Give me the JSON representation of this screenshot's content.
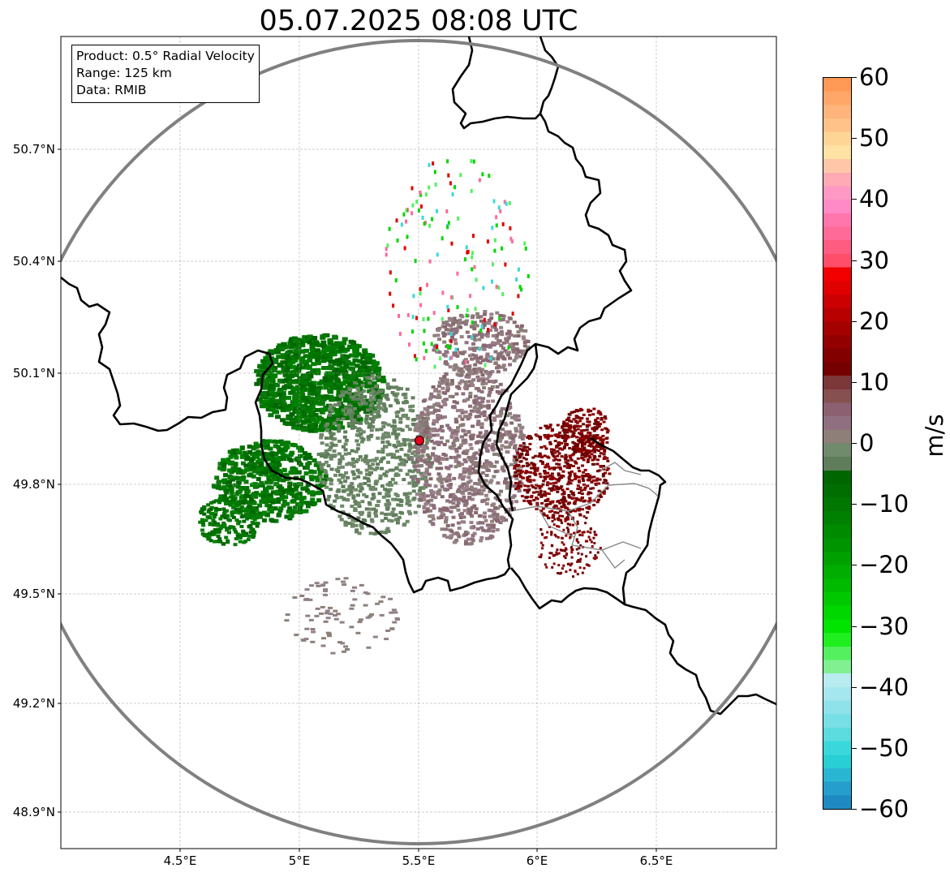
{
  "title": "05.07.2025 08:08 UTC",
  "info_box": {
    "product": "Product: 0.5° Radial Velocity",
    "range": "Range: 125 km",
    "data": "Data: RMIB"
  },
  "map": {
    "lat_ticks": [
      "50.7°N",
      "50.4°N",
      "50.1°N",
      "49.8°N",
      "49.5°N",
      "49.2°N",
      "48.9°N"
    ],
    "lon_ticks": [
      "4.5°E",
      "5°E",
      "5.5°E",
      "6°E",
      "6.5°E"
    ],
    "radar_site_marker": "radar-site",
    "range_ring_color": "#808080",
    "border_color": "#000000",
    "subregion_border_color": "#888888"
  },
  "colorbar": {
    "unit": "m/s",
    "min": -60,
    "max": 60,
    "tick_values": [
      60,
      50,
      40,
      30,
      20,
      10,
      0,
      -10,
      -20,
      -30,
      -40,
      -50,
      -60
    ],
    "tick_labels": [
      "60",
      "50",
      "40",
      "30",
      "20",
      "10",
      "0",
      "−10",
      "−20",
      "−30",
      "−40",
      "−50",
      "−60"
    ],
    "colors_top_to_bottom": [
      "#ff9955",
      "#ffa768",
      "#ffb47c",
      "#ffc289",
      "#ffd596",
      "#ffe2a4",
      "#ffc7a8",
      "#ffaab5",
      "#ff98c4",
      "#ff8ac6",
      "#ff76ad",
      "#ff6a98",
      "#ff5c82",
      "#ff4e6a",
      "#f20000",
      "#e10000",
      "#cc0000",
      "#b80000",
      "#a40000",
      "#930000",
      "#830000",
      "#740000",
      "#7c3838",
      "#865050",
      "#8c6070",
      "#907080",
      "#8c8078",
      "#708a6c",
      "#5f7d5a",
      "#006600",
      "#006e00",
      "#007700",
      "#008000",
      "#008a00",
      "#009400",
      "#00a000",
      "#00ad00",
      "#00ba00",
      "#00c800",
      "#00d600",
      "#00e400",
      "#1fef1f",
      "#55f05f",
      "#80f090",
      "#b8ecf0",
      "#a5e7ee",
      "#90e2ea",
      "#78dfe6",
      "#5cdcdf",
      "#3ad8dc",
      "#28d0d6",
      "#29b6d2",
      "#259ecb",
      "#1f8ac2"
    ]
  }
}
